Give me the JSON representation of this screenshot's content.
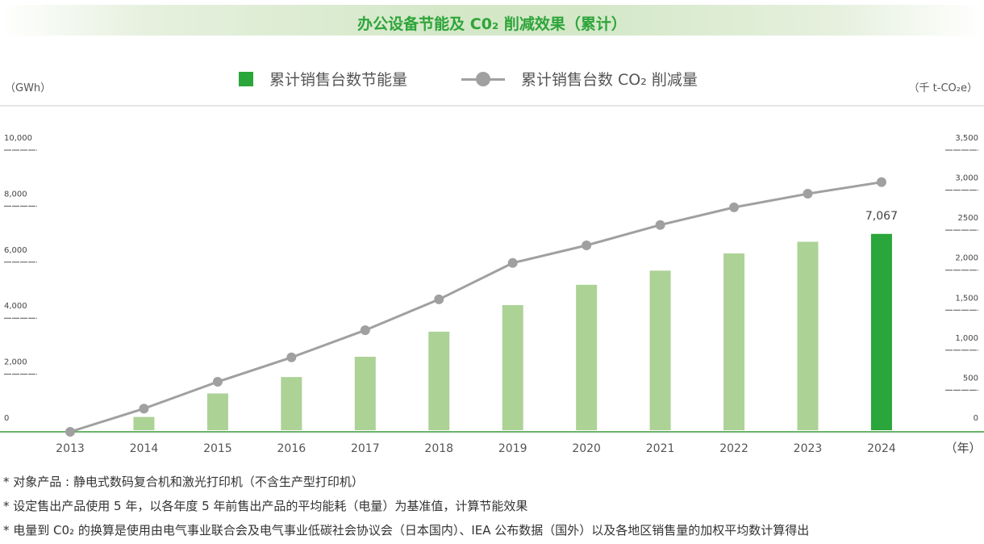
{
  "title": "办公设备节能及 C0₂ 削减效果（累计）",
  "legend": {
    "bar_label": "累计销售台数节能量",
    "line_label": "累计销售台数 CO₂ 削减量"
  },
  "colors": {
    "bar": "#acd296",
    "bar_highlight": "#2aa63a",
    "line": "#a0a0a0",
    "title": "#2ea43a",
    "baseline": "#3a9a3a"
  },
  "chart_data": {
    "type": "bar+line",
    "title": "办公设备节能及 C0₂ 削减效果（累计）",
    "categories": [
      "2013",
      "2014",
      "2015",
      "2016",
      "2017",
      "2018",
      "2019",
      "2020",
      "2021",
      "2022",
      "2023",
      "2024"
    ],
    "xlabel": "（年）",
    "y_left": {
      "label": "（GWh）",
      "ylim": [
        0,
        10000
      ],
      "ticks": [
        "0",
        "2,000",
        "4,000",
        "6,000",
        "8,000",
        "10,000"
      ],
      "tick_values": [
        0,
        2000,
        4000,
        6000,
        8000,
        10000
      ]
    },
    "y_right": {
      "label": "（千 t-CO₂e）",
      "ylim": [
        0,
        3500
      ],
      "ticks": [
        "0",
        "500",
        "1,000",
        "1,500",
        "2,000",
        "2500",
        "3,000",
        "3,500"
      ],
      "tick_values": [
        0,
        500,
        1000,
        1500,
        2000,
        2500,
        3000,
        3500
      ]
    },
    "series": [
      {
        "name": "累计销售台数节能量",
        "type": "bar",
        "axis": "left",
        "values": [
          0,
          530,
          1370,
          1955,
          2680,
          3575,
          4525,
          5250,
          5755,
          6370,
          6785,
          7067
        ]
      },
      {
        "name": "累计销售台数 CO₂ 削减量",
        "type": "line",
        "axis": "right",
        "values": [
          0,
          290,
          625,
          930,
          1270,
          1655,
          2110,
          2330,
          2585,
          2805,
          2975,
          3120
        ]
      }
    ],
    "data_labels": [
      {
        "category": "2024",
        "text": "7,067"
      }
    ],
    "grid": false,
    "legend_position": "top"
  },
  "notes": [
    "* 对象产品 : 静电式数码复合机和激光打印机（不含生产型打印机）",
    "* 设定售出产品使用 5 年，以各年度 5 年前售出产品的平均能耗（电量）为基准值，计算节能效果",
    "* 电量到 C0₂ 的换算是使用由电气事业联合会及电气事业低碳社会协议会（日本国内）、IEA 公布数据（国外）以及各地区销售量的加权平均数计算得出"
  ]
}
